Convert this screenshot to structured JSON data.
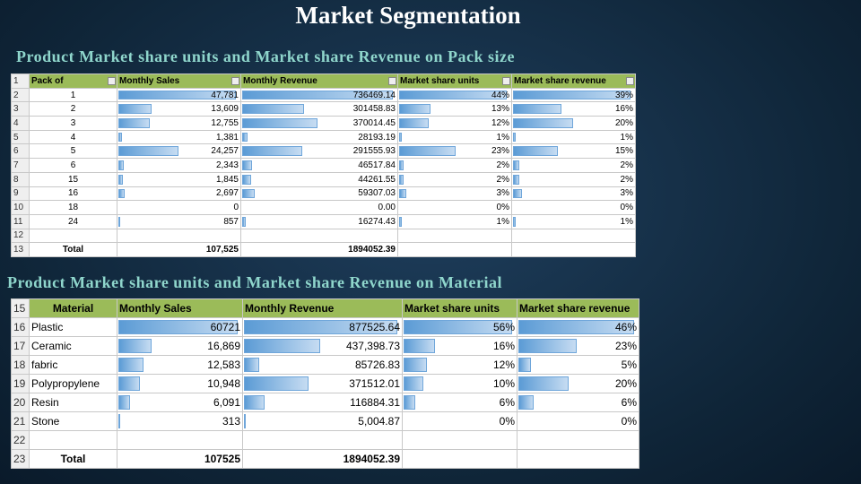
{
  "title": "Market Segmentation",
  "table1": {
    "heading": "Product Market share units and Market share Revenue on  Pack size",
    "header": {
      "num": "1",
      "cells": [
        "Pack of",
        "Monthly Sales",
        "Monthly Revenue",
        "Market share units",
        "Market share revenue"
      ]
    },
    "rows": [
      {
        "num": "2",
        "cells": [
          "1",
          "47,781",
          "736469.14",
          "44%",
          "39%"
        ]
      },
      {
        "num": "3",
        "cells": [
          "2",
          "13,609",
          "301458.83",
          "13%",
          "16%"
        ]
      },
      {
        "num": "4",
        "cells": [
          "3",
          "12,755",
          "370014.45",
          "12%",
          "20%"
        ]
      },
      {
        "num": "5",
        "cells": [
          "4",
          "1,381",
          "28193.19",
          "1%",
          "1%"
        ]
      },
      {
        "num": "6",
        "cells": [
          "5",
          "24,257",
          "291555.93",
          "23%",
          "15%"
        ]
      },
      {
        "num": "7",
        "cells": [
          "6",
          "2,343",
          "46517.84",
          "2%",
          "2%"
        ]
      },
      {
        "num": "8",
        "cells": [
          "15",
          "1,845",
          "44261.55",
          "2%",
          "2%"
        ]
      },
      {
        "num": "9",
        "cells": [
          "16",
          "2,697",
          "59307.03",
          "3%",
          "3%"
        ]
      },
      {
        "num": "10",
        "cells": [
          "18",
          "0",
          "0.00",
          "0%",
          "0%"
        ]
      },
      {
        "num": "11",
        "cells": [
          "24",
          "857",
          "16274.43",
          "1%",
          "1%"
        ]
      },
      {
        "num": "12",
        "cells": []
      }
    ],
    "total": {
      "num": "13",
      "cells": [
        "Total",
        "107,525",
        "1894052.39"
      ]
    }
  },
  "table2": {
    "heading": "Product Market share units and Market share Revenue on  Material",
    "header": {
      "num": "15",
      "cells": [
        "Material",
        "Monthly Sales",
        "Monthly Revenue",
        "Market share units",
        "Market share revenue"
      ]
    },
    "rows": [
      {
        "num": "16",
        "cells": [
          "Plastic",
          "60721",
          "877525.64",
          "56%",
          "46%"
        ]
      },
      {
        "num": "17",
        "cells": [
          "Ceramic",
          "16,869",
          "437,398.73",
          "16%",
          "23%"
        ]
      },
      {
        "num": "18",
        "cells": [
          "fabric",
          "12,583",
          "85726.83",
          "12%",
          "5%"
        ]
      },
      {
        "num": "19",
        "cells": [
          "Polypropylene",
          "10,948",
          "371512.01",
          "10%",
          "20%"
        ]
      },
      {
        "num": "20",
        "cells": [
          "Resin",
          "6,091",
          "116884.31",
          "6%",
          "6%"
        ]
      },
      {
        "num": "21",
        "cells": [
          "Stone",
          "313",
          "5,004.87",
          "0%",
          "0%"
        ]
      },
      {
        "num": "22",
        "cells": []
      }
    ],
    "total": {
      "num": "23",
      "cells": [
        "Total",
        "107525",
        "1894052.39"
      ]
    }
  }
}
